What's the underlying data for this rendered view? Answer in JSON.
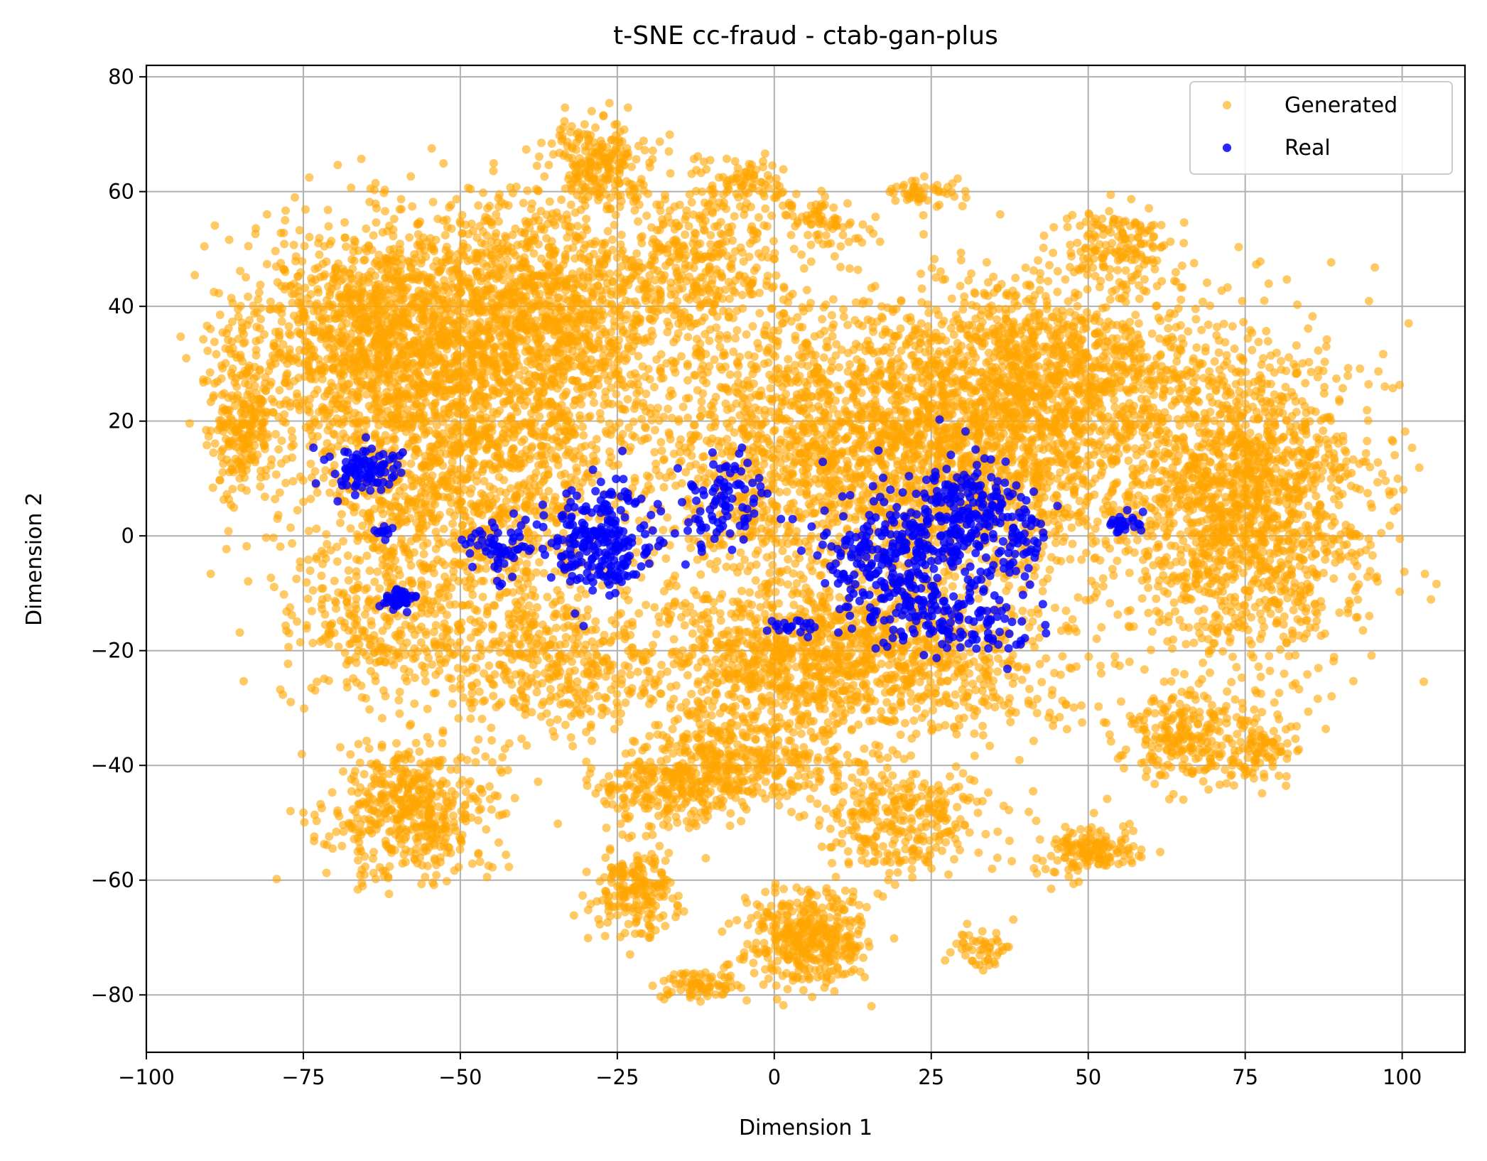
{
  "chart_data": {
    "type": "scatter",
    "title": "t-SNE cc-fraud - ctab-gan-plus",
    "xlabel": "Dimension 1",
    "ylabel": "Dimension 2",
    "xlim": [
      -100,
      110
    ],
    "ylim": [
      -90,
      82
    ],
    "xticks": [
      -100,
      -75,
      -50,
      -25,
      0,
      25,
      50,
      75,
      100
    ],
    "yticks": [
      -80,
      -60,
      -40,
      -20,
      0,
      20,
      40,
      60,
      80
    ],
    "grid": true,
    "legend_position": "top-right",
    "series": [
      {
        "name": "Generated",
        "color": "#FFA500",
        "clusters": [
          {
            "center": [
              -62,
              35
            ],
            "spread": [
              16,
              14
            ],
            "count": 1400
          },
          {
            "center": [
              -38,
              38
            ],
            "spread": [
              16,
              15
            ],
            "count": 1300
          },
          {
            "center": [
              -50,
              10
            ],
            "spread": [
              18,
              14
            ],
            "count": 1100
          },
          {
            "center": [
              -28,
              65
            ],
            "spread": [
              6,
              5
            ],
            "count": 220
          },
          {
            "center": [
              -12,
              48
            ],
            "spread": [
              10,
              10
            ],
            "count": 350
          },
          {
            "center": [
              -5,
              62
            ],
            "spread": [
              5,
              3
            ],
            "count": 70
          },
          {
            "center": [
              8,
              55
            ],
            "spread": [
              5,
              3
            ],
            "count": 70
          },
          {
            "center": [
              24,
              60
            ],
            "spread": [
              4,
              2
            ],
            "count": 50
          },
          {
            "center": [
              55,
              50
            ],
            "spread": [
              6,
              5
            ],
            "count": 150
          },
          {
            "center": [
              20,
              15
            ],
            "spread": [
              32,
              18
            ],
            "count": 3000
          },
          {
            "center": [
              75,
              5
            ],
            "spread": [
              14,
              20
            ],
            "count": 1500
          },
          {
            "center": [
              45,
              28
            ],
            "spread": [
              18,
              13
            ],
            "count": 900
          },
          {
            "center": [
              10,
              -22
            ],
            "spread": [
              25,
              10
            ],
            "count": 1400
          },
          {
            "center": [
              -35,
              -22
            ],
            "spread": [
              12,
              9
            ],
            "count": 350
          },
          {
            "center": [
              -60,
              -15
            ],
            "spread": [
              14,
              10
            ],
            "count": 400
          },
          {
            "center": [
              -58,
              -48
            ],
            "spread": [
              9,
              8
            ],
            "count": 500
          },
          {
            "center": [
              -22,
              -62
            ],
            "spread": [
              5,
              5
            ],
            "count": 200
          },
          {
            "center": [
              -18,
              -45
            ],
            "spread": [
              8,
              5
            ],
            "count": 200
          },
          {
            "center": [
              5,
              -70
            ],
            "spread": [
              7,
              6
            ],
            "count": 400
          },
          {
            "center": [
              -12,
              -78
            ],
            "spread": [
              4,
              2
            ],
            "count": 80
          },
          {
            "center": [
              20,
              -50
            ],
            "spread": [
              10,
              7
            ],
            "count": 300
          },
          {
            "center": [
              50,
              -55
            ],
            "spread": [
              6,
              3
            ],
            "count": 150
          },
          {
            "center": [
              33,
              -72
            ],
            "spread": [
              3,
              3
            ],
            "count": 50
          },
          {
            "center": [
              65,
              -35
            ],
            "spread": [
              8,
              6
            ],
            "count": 250
          },
          {
            "center": [
              78,
              -38
            ],
            "spread": [
              4,
              4
            ],
            "count": 80
          },
          {
            "center": [
              -85,
              20
            ],
            "spread": [
              4,
              10
            ],
            "count": 250
          },
          {
            "center": [
              -5,
              -40
            ],
            "spread": [
              12,
              6
            ],
            "count": 400
          }
        ]
      },
      {
        "name": "Real",
        "color": "#0000FF",
        "clusters": [
          {
            "center": [
              -65,
              11
            ],
            "spread": [
              4,
              3
            ],
            "count": 90
          },
          {
            "center": [
              -60,
              -11
            ],
            "spread": [
              1.8,
              1.2
            ],
            "count": 45
          },
          {
            "center": [
              -62,
              1
            ],
            "spread": [
              1.2,
              0.8
            ],
            "count": 12
          },
          {
            "center": [
              -28,
              -1
            ],
            "spread": [
              6,
              7
            ],
            "count": 230
          },
          {
            "center": [
              -44,
              -2
            ],
            "spread": [
              4,
              4
            ],
            "count": 60
          },
          {
            "center": [
              -8,
              6
            ],
            "spread": [
              5,
              6
            ],
            "count": 90
          },
          {
            "center": [
              20,
              -4
            ],
            "spread": [
              9,
              9
            ],
            "count": 320
          },
          {
            "center": [
              32,
              5
            ],
            "spread": [
              6,
              6
            ],
            "count": 170
          },
          {
            "center": [
              30,
              -15
            ],
            "spread": [
              8,
              4
            ],
            "count": 110
          },
          {
            "center": [
              56,
              2
            ],
            "spread": [
              1.8,
              1.5
            ],
            "count": 25
          },
          {
            "center": [
              40,
              -2
            ],
            "spread": [
              3,
              5
            ],
            "count": 40
          },
          {
            "center": [
              2,
              -16
            ],
            "spread": [
              3,
              1
            ],
            "count": 20
          }
        ]
      }
    ]
  }
}
